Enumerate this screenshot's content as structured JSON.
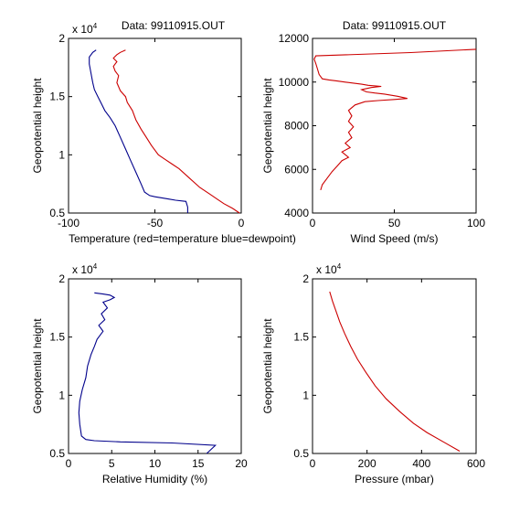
{
  "chart_data": [
    {
      "type": "line",
      "title": "Data: 99110915.OUT",
      "xlabel": "Temperature (red=temperature blue=dewpoint)",
      "ylabel": "Geopotential height",
      "y_exponent_label": "x 10",
      "y_exponent_power": "4",
      "xlim": [
        -100,
        0
      ],
      "ylim": [
        0.5,
        2
      ],
      "xticks": [
        -100,
        -50,
        0
      ],
      "xtick_labels": [
        "-100",
        "-50",
        "0"
      ],
      "yticks": [
        0.5,
        1,
        1.5,
        2
      ],
      "ytick_labels": [
        "0.5",
        "1",
        "1.5",
        "2"
      ],
      "grid": false,
      "series": [
        {
          "color": "#cc0000",
          "points": [
            [
              -1,
              0.5
            ],
            [
              -5,
              0.54
            ],
            [
              -10,
              0.58
            ],
            [
              -14,
              0.62
            ],
            [
              -18,
              0.66
            ],
            [
              -24,
              0.72
            ],
            [
              -30,
              0.8
            ],
            [
              -36,
              0.88
            ],
            [
              -40,
              0.92
            ],
            [
              -44,
              0.96
            ],
            [
              -48,
              1.0
            ],
            [
              -52,
              1.08
            ],
            [
              -55,
              1.15
            ],
            [
              -58,
              1.22
            ],
            [
              -61,
              1.3
            ],
            [
              -63,
              1.38
            ],
            [
              -66,
              1.45
            ],
            [
              -67,
              1.5
            ],
            [
              -70,
              1.55
            ],
            [
              -72,
              1.62
            ],
            [
              -71,
              1.68
            ],
            [
              -73,
              1.72
            ],
            [
              -74,
              1.76
            ],
            [
              -72,
              1.8
            ],
            [
              -74,
              1.83
            ],
            [
              -72,
              1.86
            ],
            [
              -70,
              1.88
            ],
            [
              -67,
              1.9
            ]
          ]
        },
        {
          "color": "#00008b",
          "points": [
            [
              -31,
              0.5
            ],
            [
              -31,
              0.55
            ],
            [
              -32,
              0.6
            ],
            [
              -38,
              0.61
            ],
            [
              -42,
              0.62
            ],
            [
              -46,
              0.63
            ],
            [
              -50,
              0.64
            ],
            [
              -53,
              0.65
            ],
            [
              -56,
              0.68
            ],
            [
              -58,
              0.75
            ],
            [
              -61,
              0.85
            ],
            [
              -64,
              0.95
            ],
            [
              -67,
              1.05
            ],
            [
              -70,
              1.15
            ],
            [
              -73,
              1.25
            ],
            [
              -76,
              1.32
            ],
            [
              -79,
              1.38
            ],
            [
              -81,
              1.44
            ],
            [
              -83,
              1.5
            ],
            [
              -85,
              1.56
            ],
            [
              -86,
              1.62
            ],
            [
              -87,
              1.7
            ],
            [
              -88,
              1.78
            ],
            [
              -88,
              1.84
            ],
            [
              -86,
              1.88
            ],
            [
              -84,
              1.9
            ]
          ]
        }
      ]
    },
    {
      "type": "line",
      "title": "Data: 99110915.OUT",
      "xlabel": "Wind Speed (m/s)",
      "ylabel": "Geopotential height",
      "xlim": [
        0,
        100
      ],
      "ylim": [
        4000,
        12000
      ],
      "xticks": [
        0,
        50,
        100
      ],
      "xtick_labels": [
        "0",
        "50",
        "100"
      ],
      "yticks": [
        4000,
        6000,
        8000,
        10000,
        12000
      ],
      "ytick_labels": [
        "4000",
        "6000",
        "8000",
        "10000",
        "12000"
      ],
      "grid": false,
      "series": [
        {
          "color": "#cc0000",
          "points": [
            [
              5,
              5050
            ],
            [
              6,
              5300
            ],
            [
              9,
              5600
            ],
            [
              12,
              5900
            ],
            [
              15,
              6150
            ],
            [
              18,
              6400
            ],
            [
              22,
              6550
            ],
            [
              18,
              6800
            ],
            [
              23,
              7000
            ],
            [
              20,
              7200
            ],
            [
              24,
              7450
            ],
            [
              22,
              7700
            ],
            [
              25,
              7950
            ],
            [
              22,
              8200
            ],
            [
              24,
              8450
            ],
            [
              22,
              8700
            ],
            [
              26,
              8950
            ],
            [
              32,
              9100
            ],
            [
              40,
              9150
            ],
            [
              50,
              9200
            ],
            [
              58,
              9250
            ],
            [
              52,
              9350
            ],
            [
              44,
              9450
            ],
            [
              38,
              9500
            ],
            [
              33,
              9550
            ],
            [
              30,
              9650
            ],
            [
              36,
              9750
            ],
            [
              42,
              9800
            ],
            [
              34,
              9850
            ],
            [
              30,
              9900
            ],
            [
              25,
              9950
            ],
            [
              20,
              10000
            ],
            [
              15,
              10050
            ],
            [
              10,
              10100
            ],
            [
              6,
              10150
            ],
            [
              4,
              10350
            ],
            [
              3,
              10600
            ],
            [
              2,
              10850
            ],
            [
              1,
              11050
            ],
            [
              2,
              11200
            ],
            [
              60,
              11350
            ],
            [
              100,
              11500
            ]
          ]
        }
      ]
    },
    {
      "type": "line",
      "title": "",
      "xlabel": "Relative Humidity (%)",
      "ylabel": "Geopotential height",
      "y_exponent_label": "x 10",
      "y_exponent_power": "4",
      "xlim": [
        0,
        20
      ],
      "ylim": [
        0.5,
        2
      ],
      "xticks": [
        0,
        5,
        10,
        15,
        20
      ],
      "xtick_labels": [
        "0",
        "5",
        "10",
        "15",
        "20"
      ],
      "yticks": [
        0.5,
        1,
        1.5,
        2
      ],
      "ytick_labels": [
        "0.5",
        "1",
        "1.5",
        "2"
      ],
      "grid": false,
      "series": [
        {
          "color": "#00008b",
          "points": [
            [
              16,
              0.5
            ],
            [
              17,
              0.57
            ],
            [
              12,
              0.59
            ],
            [
              6,
              0.6
            ],
            [
              3,
              0.61
            ],
            [
              2,
              0.62
            ],
            [
              1.5,
              0.65
            ],
            [
              1.3,
              0.75
            ],
            [
              1.2,
              0.85
            ],
            [
              1.3,
              0.95
            ],
            [
              1.6,
              1.05
            ],
            [
              2.0,
              1.15
            ],
            [
              2.2,
              1.25
            ],
            [
              2.6,
              1.35
            ],
            [
              3.0,
              1.42
            ],
            [
              3.3,
              1.48
            ],
            [
              4.0,
              1.55
            ],
            [
              3.5,
              1.6
            ],
            [
              4.2,
              1.65
            ],
            [
              3.8,
              1.7
            ],
            [
              4.5,
              1.75
            ],
            [
              4.0,
              1.8
            ],
            [
              4.8,
              1.82
            ],
            [
              5.3,
              1.84
            ],
            [
              4.8,
              1.86
            ],
            [
              4.0,
              1.87
            ],
            [
              3.0,
              1.88
            ]
          ]
        }
      ]
    },
    {
      "type": "line",
      "title": "",
      "xlabel": "Pressure (mbar)",
      "ylabel": "Geopotential height",
      "y_exponent_label": "x 10",
      "y_exponent_power": "4",
      "xlim": [
        0,
        600
      ],
      "ylim": [
        0.5,
        2
      ],
      "xticks": [
        0,
        200,
        400,
        600
      ],
      "xtick_labels": [
        "0",
        "200",
        "400",
        "600"
      ],
      "yticks": [
        0.5,
        1,
        1.5,
        2
      ],
      "ytick_labels": [
        "0.5",
        "1",
        "1.5",
        "2"
      ],
      "grid": false,
      "series": [
        {
          "color": "#cc0000",
          "points": [
            [
              540,
              0.52
            ],
            [
              480,
              0.6
            ],
            [
              420,
              0.68
            ],
            [
              370,
              0.76
            ],
            [
              320,
              0.86
            ],
            [
              270,
              0.97
            ],
            [
              230,
              1.08
            ],
            [
              195,
              1.2
            ],
            [
              165,
              1.31
            ],
            [
              140,
              1.42
            ],
            [
              118,
              1.53
            ],
            [
              100,
              1.63
            ],
            [
              85,
              1.73
            ],
            [
              73,
              1.81
            ],
            [
              63,
              1.89
            ]
          ]
        }
      ]
    }
  ]
}
